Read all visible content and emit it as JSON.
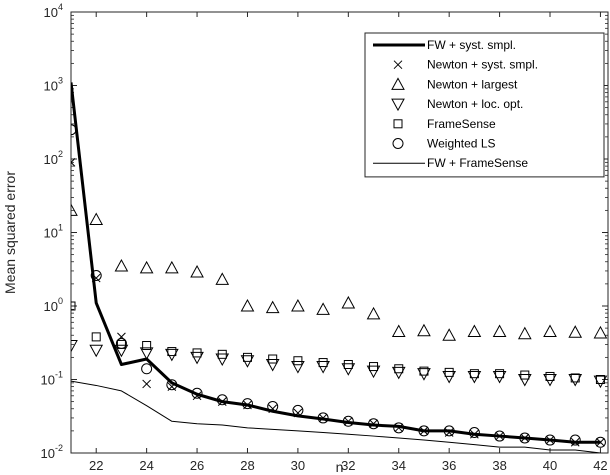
{
  "chart_data": {
    "type": "line",
    "title": "",
    "xlabel": "n",
    "ylabel": "Mean squared error",
    "xlim": [
      21,
      42.3
    ],
    "ylim": [
      0.01,
      10000
    ],
    "yscale": "log",
    "grid": false,
    "legend_position": "top-right",
    "x_ticks": [
      22,
      24,
      26,
      28,
      30,
      32,
      34,
      36,
      38,
      40,
      42
    ],
    "y_ticks": [
      {
        "value": 0.01,
        "base": "10",
        "exp": "-2"
      },
      {
        "value": 0.1,
        "base": "10",
        "exp": "-1"
      },
      {
        "value": 1,
        "base": "10",
        "exp": "0"
      },
      {
        "value": 10,
        "base": "10",
        "exp": "1"
      },
      {
        "value": 100,
        "base": "10",
        "exp": "2"
      },
      {
        "value": 1000,
        "base": "10",
        "exp": "3"
      },
      {
        "value": 10000,
        "base": "10",
        "exp": "4"
      }
    ],
    "x": [
      21,
      22,
      23,
      24,
      25,
      26,
      27,
      28,
      29,
      30,
      31,
      32,
      33,
      34,
      35,
      36,
      37,
      38,
      39,
      40,
      41,
      42
    ],
    "series": [
      {
        "name": "FW + syst. smpl.",
        "style": "thick-line",
        "values": [
          1100,
          1.1,
          0.16,
          0.19,
          0.09,
          0.063,
          0.05,
          0.045,
          0.037,
          0.032,
          0.029,
          0.026,
          0.024,
          0.023,
          0.02,
          0.02,
          0.018,
          0.017,
          0.016,
          0.015,
          0.014,
          0.014
        ]
      },
      {
        "name": "Newton + syst. smpl.",
        "style": "x-marker",
        "values": [
          90,
          2.4,
          0.38,
          0.087,
          0.08,
          0.06,
          0.05,
          0.045,
          0.04,
          0.035,
          0.03,
          0.027,
          0.025,
          0.022,
          0.02,
          0.019,
          0.018,
          0.017,
          0.016,
          0.015,
          0.014,
          0.014
        ]
      },
      {
        "name": "Newton +  largest",
        "style": "triangle-up",
        "values": [
          20,
          15,
          3.5,
          3.3,
          3.3,
          2.9,
          2.3,
          1.0,
          0.95,
          1.0,
          0.9,
          1.1,
          0.78,
          0.45,
          0.46,
          0.4,
          0.45,
          0.45,
          0.42,
          0.45,
          0.44,
          0.43
        ]
      },
      {
        "name": "Newton +  loc. opt.",
        "style": "triangle-down",
        "values": [
          0.29,
          0.25,
          0.25,
          0.23,
          0.22,
          0.2,
          0.19,
          0.18,
          0.16,
          0.15,
          0.15,
          0.14,
          0.13,
          0.125,
          0.12,
          0.11,
          0.11,
          0.11,
          0.1,
          0.1,
          0.1,
          0.095
        ]
      },
      {
        "name": "FrameSense",
        "style": "square",
        "values": [
          1.0,
          0.38,
          0.3,
          0.29,
          0.24,
          0.23,
          0.22,
          0.2,
          0.19,
          0.18,
          0.17,
          0.16,
          0.15,
          0.14,
          0.13,
          0.125,
          0.12,
          0.12,
          0.115,
          0.11,
          0.105,
          0.1
        ]
      },
      {
        "name": "Weighted LS",
        "style": "circle",
        "values": [
          250,
          2.6,
          0.31,
          0.14,
          0.085,
          0.065,
          0.053,
          0.047,
          0.043,
          0.038,
          0.03,
          0.027,
          0.025,
          0.022,
          0.02,
          0.02,
          0.019,
          0.017,
          0.016,
          0.015,
          0.015,
          0.014
        ]
      },
      {
        "name": "FW + FrameSense",
        "style": "thin-line",
        "values": [
          0.095,
          0.083,
          0.07,
          0.044,
          0.027,
          0.025,
          0.024,
          0.022,
          0.021,
          0.02,
          0.019,
          0.018,
          0.017,
          0.016,
          0.015,
          0.014,
          0.013,
          0.012,
          0.012,
          0.011,
          0.011,
          0.01
        ]
      }
    ]
  }
}
